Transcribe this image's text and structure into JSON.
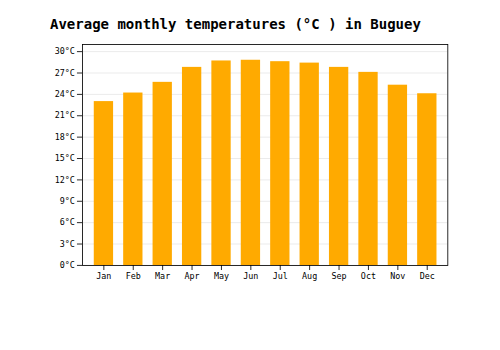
{
  "chart_data": {
    "type": "bar",
    "title": "Average monthly temperatures (°C ) in Buguey",
    "categories": [
      "Jan",
      "Feb",
      "Mar",
      "Apr",
      "May",
      "Jun",
      "Jul",
      "Aug",
      "Sep",
      "Oct",
      "Nov",
      "Dec"
    ],
    "values": [
      23.0,
      24.2,
      25.7,
      27.8,
      28.7,
      28.8,
      28.6,
      28.4,
      27.8,
      27.1,
      25.3,
      24.1
    ],
    "color": "#FFAA00",
    "ylim": [
      0,
      31
    ],
    "yticks": [
      {
        "value": 0,
        "label": "0°C"
      },
      {
        "value": 3,
        "label": "3°C"
      },
      {
        "value": 6,
        "label": "6°C"
      },
      {
        "value": 9,
        "label": "9°C"
      },
      {
        "value": 12,
        "label": "12°C"
      },
      {
        "value": 15,
        "label": "15°C"
      },
      {
        "value": 18,
        "label": "18°C"
      },
      {
        "value": 21,
        "label": "21°C"
      },
      {
        "value": 24,
        "label": "24°C"
      },
      {
        "value": 27,
        "label": "27°C"
      },
      {
        "value": 30,
        "label": "30°C"
      }
    ],
    "grid": true
  }
}
